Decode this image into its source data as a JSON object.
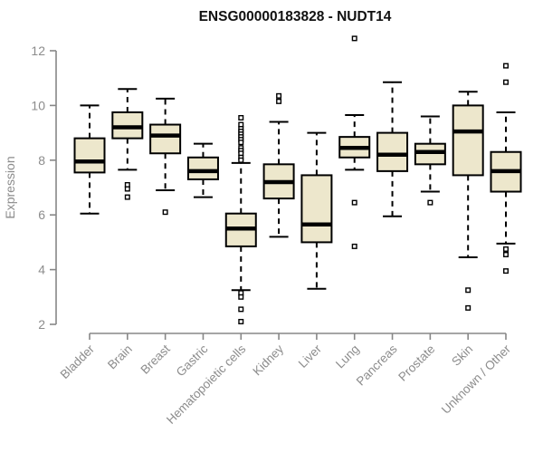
{
  "chart_data": {
    "type": "boxplot",
    "title": "ENSG00000183828 - NUDT14",
    "ylabel": "Expression",
    "xlabel": "",
    "ylim": [
      2,
      12
    ],
    "yticks": [
      2,
      4,
      6,
      8,
      10,
      12
    ],
    "grid": false,
    "legend": "none",
    "categories": [
      "Bladder",
      "Brain",
      "Breast",
      "Gastric",
      "Hematopoietic cells",
      "Kidney",
      "Liver",
      "Lung",
      "Pancreas",
      "Prostate",
      "Skin",
      "Unknown / Other"
    ],
    "series": [
      {
        "category": "Bladder",
        "whisker_low": 6.05,
        "q1": 7.55,
        "median": 7.95,
        "q3": 8.8,
        "whisker_high": 10.0,
        "outliers": []
      },
      {
        "category": "Brain",
        "whisker_low": 7.65,
        "q1": 8.8,
        "median": 9.2,
        "q3": 9.75,
        "whisker_high": 10.6,
        "outliers": [
          7.1,
          6.95,
          6.65
        ]
      },
      {
        "category": "Breast",
        "whisker_low": 6.9,
        "q1": 8.25,
        "median": 8.9,
        "q3": 9.3,
        "whisker_high": 10.25,
        "outliers": [
          6.1
        ]
      },
      {
        "category": "Gastric",
        "whisker_low": 6.65,
        "q1": 7.3,
        "median": 7.6,
        "q3": 8.1,
        "whisker_high": 8.6,
        "outliers": []
      },
      {
        "category": "Hematopoietic cells",
        "whisker_low": 3.25,
        "q1": 4.85,
        "median": 5.5,
        "q3": 6.05,
        "whisker_high": 7.9,
        "outliers": [
          9.55,
          9.3,
          9.15,
          9.05,
          8.95,
          8.85,
          8.75,
          8.65,
          8.45,
          8.35,
          8.25,
          8.1,
          8.0,
          3.15,
          3.0,
          2.55,
          2.1
        ]
      },
      {
        "category": "Kidney",
        "whisker_low": 5.2,
        "q1": 6.6,
        "median": 7.2,
        "q3": 7.85,
        "whisker_high": 9.4,
        "outliers": [
          10.35,
          10.15
        ]
      },
      {
        "category": "Liver",
        "whisker_low": 3.3,
        "q1": 5.0,
        "median": 5.65,
        "q3": 7.45,
        "whisker_high": 9.0,
        "outliers": []
      },
      {
        "category": "Lung",
        "whisker_low": 7.65,
        "q1": 8.1,
        "median": 8.45,
        "q3": 8.85,
        "whisker_high": 9.65,
        "outliers": [
          12.45,
          6.45,
          4.85
        ]
      },
      {
        "category": "Pancreas",
        "whisker_low": 5.95,
        "q1": 7.6,
        "median": 8.2,
        "q3": 9.0,
        "whisker_high": 10.85,
        "outliers": []
      },
      {
        "category": "Prostate",
        "whisker_low": 6.85,
        "q1": 7.85,
        "median": 8.3,
        "q3": 8.6,
        "whisker_high": 9.6,
        "outliers": [
          6.45
        ]
      },
      {
        "category": "Skin",
        "whisker_low": 4.45,
        "q1": 7.45,
        "median": 9.05,
        "q3": 10.0,
        "whisker_high": 10.5,
        "outliers": [
          3.25,
          2.6
        ]
      },
      {
        "category": "Unknown / Other",
        "whisker_low": 4.95,
        "q1": 6.85,
        "median": 7.6,
        "q3": 8.3,
        "whisker_high": 9.75,
        "outliers": [
          11.45,
          10.85,
          4.75,
          4.55,
          3.95
        ]
      }
    ],
    "colors": {
      "box_fill": "#EDE7CC",
      "box_border": "#000000",
      "median": "#000000",
      "whisker": "#000000",
      "outlier_border": "#000000",
      "outlier_fill": "#FFFFFF",
      "axis": "#878787",
      "axis_text": "#8C8C8C",
      "title_text": "#111111",
      "background": "#FFFFFF"
    }
  }
}
